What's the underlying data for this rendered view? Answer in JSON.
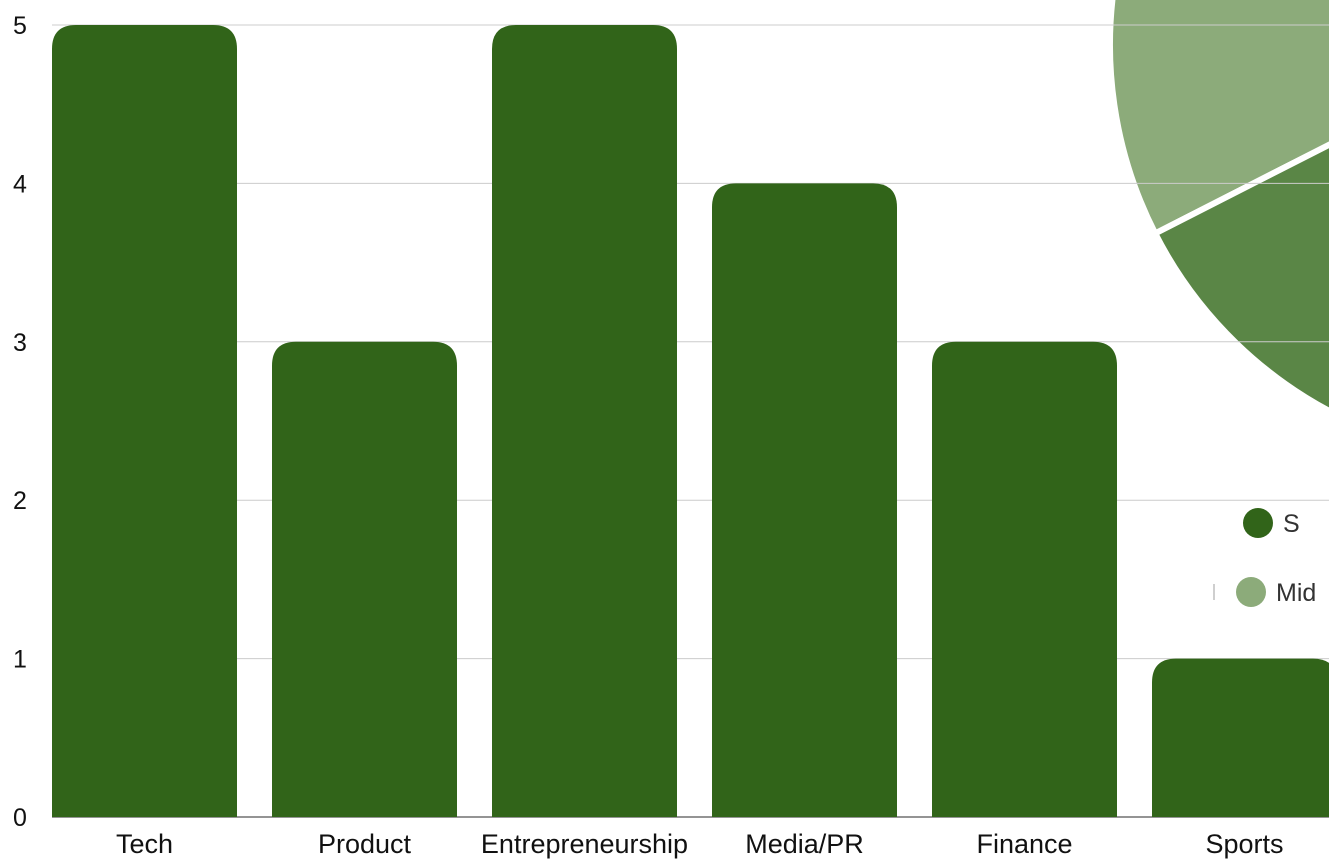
{
  "chart_data": {
    "type": "bar",
    "categories": [
      "Tech",
      "Product",
      "Entrepreneurship",
      "Media/PR",
      "Finance",
      "Sports"
    ],
    "values": [
      5,
      3,
      5,
      4,
      3,
      1
    ],
    "ylim": [
      0,
      5
    ],
    "yticks": [
      0,
      1,
      2,
      3,
      4,
      5
    ],
    "grid": true,
    "bar_color": "#316419",
    "title": "",
    "xlabel": "",
    "ylabel": ""
  },
  "background_pie": {
    "type": "pie",
    "slice_colors": [
      "#8cab7a",
      "#5a8646"
    ],
    "legend": [
      {
        "label": "S",
        "color": "#316419"
      },
      {
        "label": "Mid",
        "color": "#8cab7a"
      }
    ]
  }
}
